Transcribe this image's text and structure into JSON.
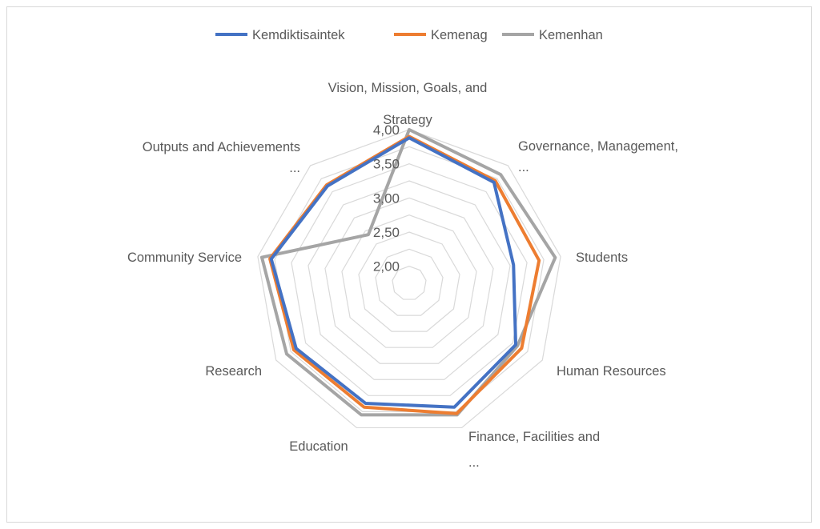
{
  "chart_data": {
    "type": "radar",
    "title": "",
    "categories": [
      [
        "Vision, Mission, Goals, and",
        "Strategy"
      ],
      [
        "Governance, Management,",
        "..."
      ],
      [
        "Students"
      ],
      [
        "Human Resources"
      ],
      [
        "Finance, Facilities and",
        "..."
      ],
      [
        "Education"
      ],
      [
        "Research"
      ],
      [
        "Community Service"
      ],
      [
        "Outputs and Achievements",
        "..."
      ]
    ],
    "r_ticks": [
      "2,00",
      "2,50",
      "3,00",
      "3,50",
      "4,00"
    ],
    "r_range": [
      1.75,
      4.0
    ],
    "r_gridlines": [
      1.75,
      2.0,
      2.25,
      2.5,
      2.75,
      3.0,
      3.25,
      3.5,
      3.75,
      4.0
    ],
    "series": [
      {
        "name": "Kemdiktisaintek",
        "color": "#4472c4",
        "values": [
          3.88,
          3.68,
          3.3,
          3.55,
          3.68,
          3.62,
          3.66,
          3.8,
          3.61
        ]
      },
      {
        "name": "Kemenag",
        "color": "#ed7d31",
        "values": [
          3.9,
          3.71,
          3.68,
          3.65,
          3.78,
          3.68,
          3.7,
          3.82,
          3.63
        ]
      },
      {
        "name": "Kemenhan",
        "color": "#a5a5a5",
        "values": [
          4.0,
          3.83,
          3.92,
          3.58,
          3.8,
          3.8,
          3.82,
          3.94,
          2.68
        ]
      }
    ],
    "legend_position": "top"
  }
}
